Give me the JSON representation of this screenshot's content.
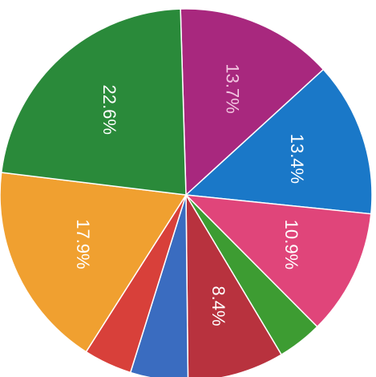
{
  "chart_data": {
    "type": "pie",
    "values": [
      13.7,
      13.4,
      10.9,
      3.9,
      8.4,
      5.0,
      4.2,
      17.9,
      22.6
    ],
    "value_labels": [
      "13.7%",
      "13.4%",
      "10.9%",
      null,
      "8.4%",
      null,
      null,
      "17.9%",
      "22.6%"
    ],
    "colors": [
      "#a8287e",
      "#1a78c8",
      "#e0457a",
      "#3d9c32",
      "#b8323e",
      "#3a6cc0",
      "#d8403a",
      "#f0a030",
      "#2a8a3a"
    ]
  }
}
